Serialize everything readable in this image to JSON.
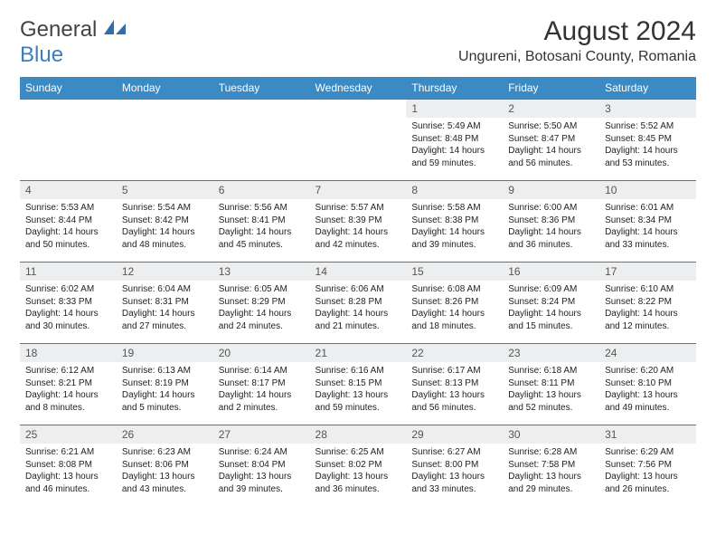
{
  "logo": {
    "word1": "General",
    "word2": "Blue",
    "icon_color": "#2f6fa8"
  },
  "title": "August 2024",
  "location": "Ungureni, Botosani County, Romania",
  "colors": {
    "header_bg": "#3b8ac4",
    "header_text": "#ffffff",
    "daynum_bg": "#eceeef",
    "rule": "#3b7fa8",
    "body_text": "#222222",
    "logo_gray": "#444444",
    "logo_blue": "#3b7fbf"
  },
  "weekdays": [
    "Sunday",
    "Monday",
    "Tuesday",
    "Wednesday",
    "Thursday",
    "Friday",
    "Saturday"
  ],
  "weeks": [
    [
      {
        "n": "",
        "sr": "",
        "ss": "",
        "dl": ""
      },
      {
        "n": "",
        "sr": "",
        "ss": "",
        "dl": ""
      },
      {
        "n": "",
        "sr": "",
        "ss": "",
        "dl": ""
      },
      {
        "n": "",
        "sr": "",
        "ss": "",
        "dl": ""
      },
      {
        "n": "1",
        "sr": "Sunrise: 5:49 AM",
        "ss": "Sunset: 8:48 PM",
        "dl": "Daylight: 14 hours and 59 minutes."
      },
      {
        "n": "2",
        "sr": "Sunrise: 5:50 AM",
        "ss": "Sunset: 8:47 PM",
        "dl": "Daylight: 14 hours and 56 minutes."
      },
      {
        "n": "3",
        "sr": "Sunrise: 5:52 AM",
        "ss": "Sunset: 8:45 PM",
        "dl": "Daylight: 14 hours and 53 minutes."
      }
    ],
    [
      {
        "n": "4",
        "sr": "Sunrise: 5:53 AM",
        "ss": "Sunset: 8:44 PM",
        "dl": "Daylight: 14 hours and 50 minutes."
      },
      {
        "n": "5",
        "sr": "Sunrise: 5:54 AM",
        "ss": "Sunset: 8:42 PM",
        "dl": "Daylight: 14 hours and 48 minutes."
      },
      {
        "n": "6",
        "sr": "Sunrise: 5:56 AM",
        "ss": "Sunset: 8:41 PM",
        "dl": "Daylight: 14 hours and 45 minutes."
      },
      {
        "n": "7",
        "sr": "Sunrise: 5:57 AM",
        "ss": "Sunset: 8:39 PM",
        "dl": "Daylight: 14 hours and 42 minutes."
      },
      {
        "n": "8",
        "sr": "Sunrise: 5:58 AM",
        "ss": "Sunset: 8:38 PM",
        "dl": "Daylight: 14 hours and 39 minutes."
      },
      {
        "n": "9",
        "sr": "Sunrise: 6:00 AM",
        "ss": "Sunset: 8:36 PM",
        "dl": "Daylight: 14 hours and 36 minutes."
      },
      {
        "n": "10",
        "sr": "Sunrise: 6:01 AM",
        "ss": "Sunset: 8:34 PM",
        "dl": "Daylight: 14 hours and 33 minutes."
      }
    ],
    [
      {
        "n": "11",
        "sr": "Sunrise: 6:02 AM",
        "ss": "Sunset: 8:33 PM",
        "dl": "Daylight: 14 hours and 30 minutes."
      },
      {
        "n": "12",
        "sr": "Sunrise: 6:04 AM",
        "ss": "Sunset: 8:31 PM",
        "dl": "Daylight: 14 hours and 27 minutes."
      },
      {
        "n": "13",
        "sr": "Sunrise: 6:05 AM",
        "ss": "Sunset: 8:29 PM",
        "dl": "Daylight: 14 hours and 24 minutes."
      },
      {
        "n": "14",
        "sr": "Sunrise: 6:06 AM",
        "ss": "Sunset: 8:28 PM",
        "dl": "Daylight: 14 hours and 21 minutes."
      },
      {
        "n": "15",
        "sr": "Sunrise: 6:08 AM",
        "ss": "Sunset: 8:26 PM",
        "dl": "Daylight: 14 hours and 18 minutes."
      },
      {
        "n": "16",
        "sr": "Sunrise: 6:09 AM",
        "ss": "Sunset: 8:24 PM",
        "dl": "Daylight: 14 hours and 15 minutes."
      },
      {
        "n": "17",
        "sr": "Sunrise: 6:10 AM",
        "ss": "Sunset: 8:22 PM",
        "dl": "Daylight: 14 hours and 12 minutes."
      }
    ],
    [
      {
        "n": "18",
        "sr": "Sunrise: 6:12 AM",
        "ss": "Sunset: 8:21 PM",
        "dl": "Daylight: 14 hours and 8 minutes."
      },
      {
        "n": "19",
        "sr": "Sunrise: 6:13 AM",
        "ss": "Sunset: 8:19 PM",
        "dl": "Daylight: 14 hours and 5 minutes."
      },
      {
        "n": "20",
        "sr": "Sunrise: 6:14 AM",
        "ss": "Sunset: 8:17 PM",
        "dl": "Daylight: 14 hours and 2 minutes."
      },
      {
        "n": "21",
        "sr": "Sunrise: 6:16 AM",
        "ss": "Sunset: 8:15 PM",
        "dl": "Daylight: 13 hours and 59 minutes."
      },
      {
        "n": "22",
        "sr": "Sunrise: 6:17 AM",
        "ss": "Sunset: 8:13 PM",
        "dl": "Daylight: 13 hours and 56 minutes."
      },
      {
        "n": "23",
        "sr": "Sunrise: 6:18 AM",
        "ss": "Sunset: 8:11 PM",
        "dl": "Daylight: 13 hours and 52 minutes."
      },
      {
        "n": "24",
        "sr": "Sunrise: 6:20 AM",
        "ss": "Sunset: 8:10 PM",
        "dl": "Daylight: 13 hours and 49 minutes."
      }
    ],
    [
      {
        "n": "25",
        "sr": "Sunrise: 6:21 AM",
        "ss": "Sunset: 8:08 PM",
        "dl": "Daylight: 13 hours and 46 minutes."
      },
      {
        "n": "26",
        "sr": "Sunrise: 6:23 AM",
        "ss": "Sunset: 8:06 PM",
        "dl": "Daylight: 13 hours and 43 minutes."
      },
      {
        "n": "27",
        "sr": "Sunrise: 6:24 AM",
        "ss": "Sunset: 8:04 PM",
        "dl": "Daylight: 13 hours and 39 minutes."
      },
      {
        "n": "28",
        "sr": "Sunrise: 6:25 AM",
        "ss": "Sunset: 8:02 PM",
        "dl": "Daylight: 13 hours and 36 minutes."
      },
      {
        "n": "29",
        "sr": "Sunrise: 6:27 AM",
        "ss": "Sunset: 8:00 PM",
        "dl": "Daylight: 13 hours and 33 minutes."
      },
      {
        "n": "30",
        "sr": "Sunrise: 6:28 AM",
        "ss": "Sunset: 7:58 PM",
        "dl": "Daylight: 13 hours and 29 minutes."
      },
      {
        "n": "31",
        "sr": "Sunrise: 6:29 AM",
        "ss": "Sunset: 7:56 PM",
        "dl": "Daylight: 13 hours and 26 minutes."
      }
    ]
  ]
}
